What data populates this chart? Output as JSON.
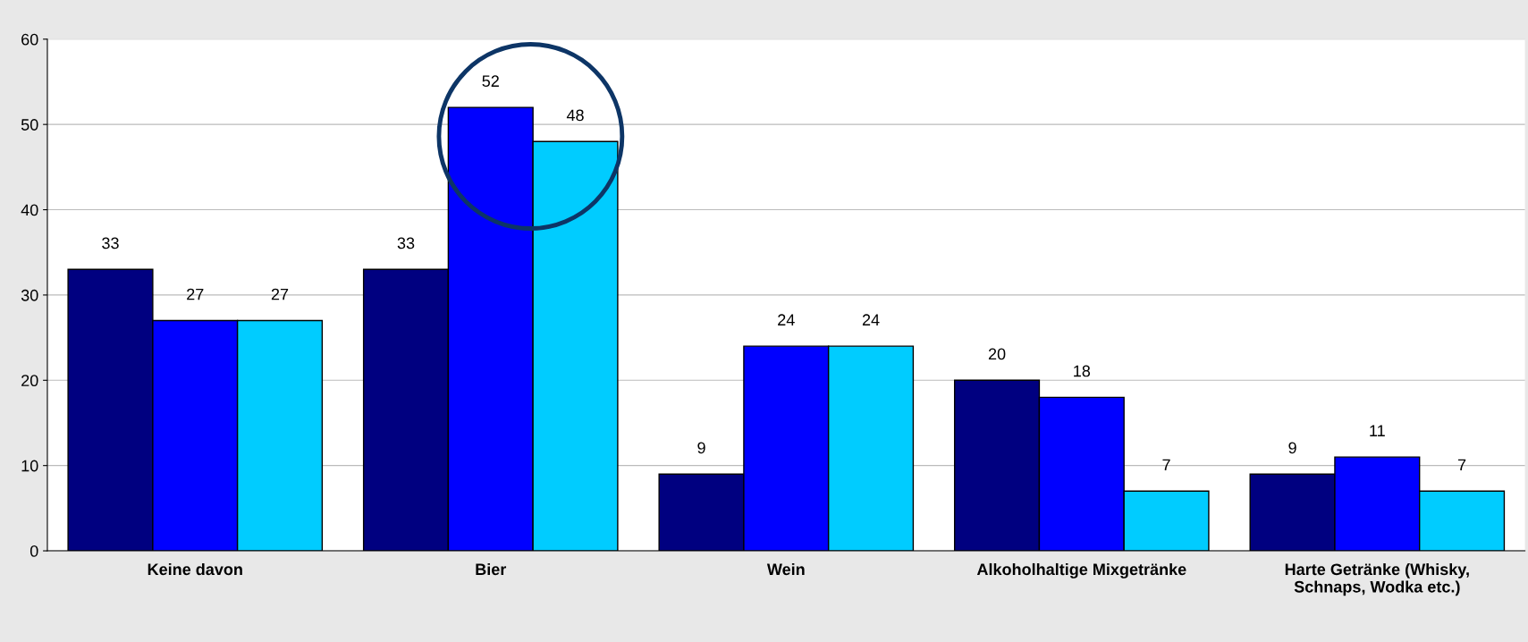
{
  "chart_data": {
    "type": "bar",
    "categories": [
      "Keine davon",
      "Bier",
      "Wein",
      "Alkoholhaltige Mixgetränke",
      "Harte Getränke (Whisky,\nSchnaps, Wodka etc.)"
    ],
    "series": [
      {
        "color": "#000080",
        "values": [
          33,
          33,
          9,
          20,
          9
        ]
      },
      {
        "color": "#0000ff",
        "values": [
          27,
          52,
          24,
          18,
          11
        ]
      },
      {
        "color": "#00ccff",
        "values": [
          27,
          48,
          24,
          7,
          7
        ]
      }
    ],
    "ylim": [
      0,
      60
    ],
    "yticks": [
      0,
      10,
      20,
      30,
      40,
      50,
      60
    ],
    "grid": "y",
    "data_labels": true
  }
}
